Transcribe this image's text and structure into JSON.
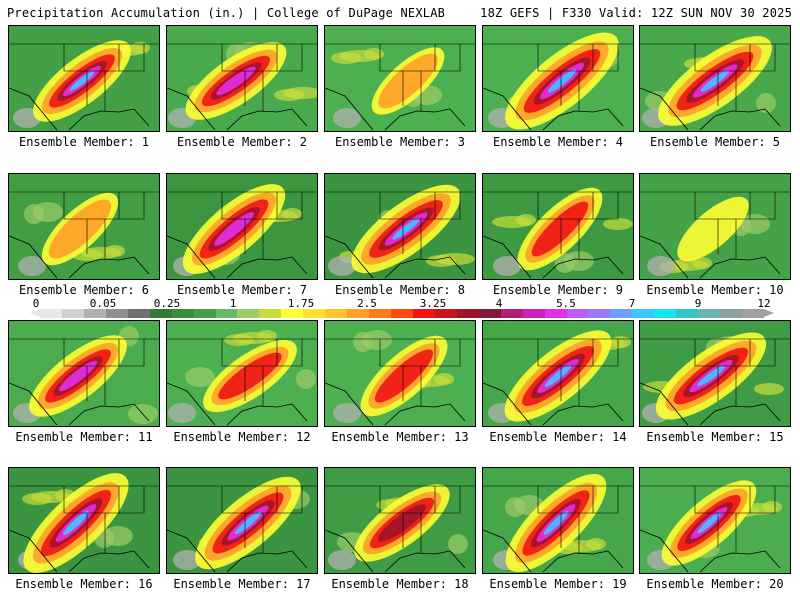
{
  "header": {
    "left": "Precipitation Accumulation (in.) | College of DuPage NEXLAB",
    "right": "18Z GEFS | F330 Valid: 12Z SUN NOV 30 2025"
  },
  "panels": [
    {
      "label": "Ensemble Member: 1",
      "intensity": 5.0,
      "core": 0.6
    },
    {
      "label": "Ensemble Member: 2",
      "intensity": 5.0,
      "core": 0.4
    },
    {
      "label": "Ensemble Member: 3",
      "intensity": 1.8,
      "core": 0.0
    },
    {
      "label": "Ensemble Member: 4",
      "intensity": 7.5,
      "core": 1.0
    },
    {
      "label": "Ensemble Member: 5",
      "intensity": 7.0,
      "core": 0.8
    },
    {
      "label": "Ensemble Member: 6",
      "intensity": 2.5,
      "core": 0.0
    },
    {
      "label": "Ensemble Member: 7",
      "intensity": 6.0,
      "core": 0.4
    },
    {
      "label": "Ensemble Member: 8",
      "intensity": 6.5,
      "core": 0.7
    },
    {
      "label": "Ensemble Member: 9",
      "intensity": 4.0,
      "core": 0.2
    },
    {
      "label": "Ensemble Member: 10",
      "intensity": 1.5,
      "core": 0.0
    },
    {
      "label": "Ensemble Member: 11",
      "intensity": 5.0,
      "core": 0.5
    },
    {
      "label": "Ensemble Member: 12",
      "intensity": 4.0,
      "core": 0.4
    },
    {
      "label": "Ensemble Member: 13",
      "intensity": 4.0,
      "core": 0.3
    },
    {
      "label": "Ensemble Member: 14",
      "intensity": 6.5,
      "core": 0.7
    },
    {
      "label": "Ensemble Member: 15",
      "intensity": 6.5,
      "core": 0.8
    },
    {
      "label": "Ensemble Member: 16",
      "intensity": 7.0,
      "core": 0.9
    },
    {
      "label": "Ensemble Member: 17",
      "intensity": 6.5,
      "core": 0.7
    },
    {
      "label": "Ensemble Member: 18",
      "intensity": 4.5,
      "core": 0.5
    },
    {
      "label": "Ensemble Member: 19",
      "intensity": 6.5,
      "core": 0.7
    },
    {
      "label": "Ensemble Member: 20",
      "intensity": 5.0,
      "core": 0.6
    }
  ],
  "colorbar": {
    "tick_labels": [
      "0",
      "0.05",
      "0.25",
      "1",
      "1.75",
      "2.5",
      "3.25",
      "4",
      "5.5",
      "7",
      "9",
      "12"
    ],
    "colors": [
      "#e8e8e8",
      "#d0d0d0",
      "#b0b0b0",
      "#909090",
      "#707070",
      "#2e7d32",
      "#388e3c",
      "#43a047",
      "#66bb6a",
      "#9ccc65",
      "#c6dd3a",
      "#ffff33",
      "#ffe033",
      "#ffc42e",
      "#ffa028",
      "#ff7b1a",
      "#ff4a12",
      "#f01414",
      "#c8141a",
      "#a01428",
      "#801a3c",
      "#b01e78",
      "#d020b8",
      "#e62ee6",
      "#bf5cf0",
      "#9a7bf5",
      "#6ea0ff",
      "#3cc8ff",
      "#14e6f5",
      "#2ec8c8",
      "#6ab4b4",
      "#8ca0a0",
      "#a0a0a0"
    ]
  }
}
